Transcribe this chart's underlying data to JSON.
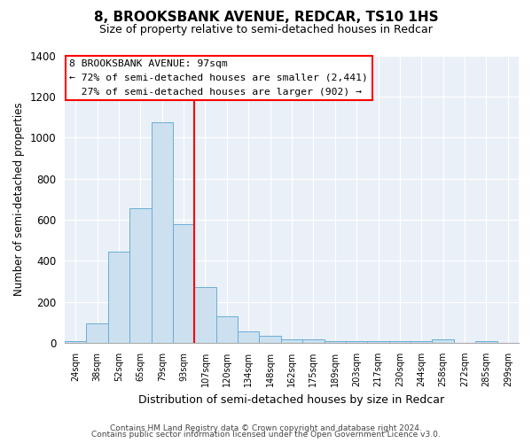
{
  "title": "8, BROOKSBANK AVENUE, REDCAR, TS10 1HS",
  "subtitle": "Size of property relative to semi-detached houses in Redcar",
  "xlabel": "Distribution of semi-detached houses by size in Redcar",
  "ylabel": "Number of semi-detached properties",
  "bar_labels": [
    "24sqm",
    "38sqm",
    "52sqm",
    "65sqm",
    "79sqm",
    "93sqm",
    "107sqm",
    "120sqm",
    "134sqm",
    "148sqm",
    "162sqm",
    "175sqm",
    "189sqm",
    "203sqm",
    "217sqm",
    "230sqm",
    "244sqm",
    "258sqm",
    "272sqm",
    "285sqm",
    "299sqm"
  ],
  "bar_heights": [
    10,
    95,
    445,
    655,
    1075,
    580,
    270,
    130,
    55,
    35,
    15,
    15,
    10,
    10,
    10,
    10,
    10,
    15,
    0,
    10,
    0
  ],
  "bar_color": "#cce0f0",
  "bar_edge_color": "#6aaed6",
  "property_label": "8 BROOKSBANK AVENUE: 97sqm",
  "pct_smaller": 72,
  "pct_smaller_count": 2441,
  "pct_larger": 27,
  "pct_larger_count": 902,
  "vline_position": 5.5,
  "vline_color": "red",
  "ylim": [
    0,
    1400
  ],
  "yticks": [
    0,
    200,
    400,
    600,
    800,
    1000,
    1200,
    1400
  ],
  "annotation_box_color": "white",
  "annotation_box_edge_color": "red",
  "footer_line1": "Contains HM Land Registry data © Crown copyright and database right 2024.",
  "footer_line2": "Contains public sector information licensed under the Open Government Licence v3.0.",
  "background_color": "#eaf0f8"
}
